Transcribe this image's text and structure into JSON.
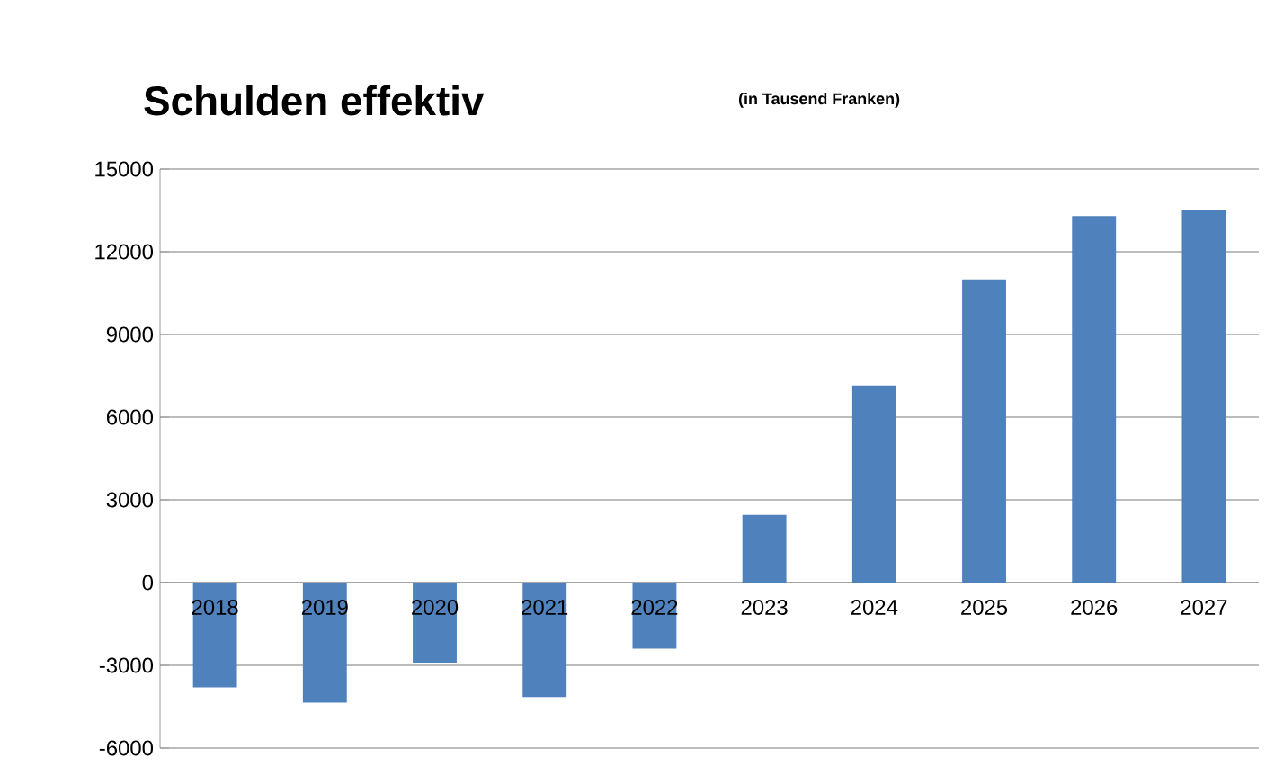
{
  "chart_data": {
    "type": "bar",
    "title": "Schulden effektiv",
    "subtitle": "(in Tausend Franken)",
    "categories": [
      "2018",
      "2019",
      "2020",
      "2021",
      "2022",
      "2023",
      "2024",
      "2025",
      "2026",
      "2027"
    ],
    "values": [
      -3800,
      -4350,
      -2900,
      -4150,
      -2400,
      2450,
      7150,
      11000,
      13300,
      13500
    ],
    "color": "#4f81bd",
    "ylim": [
      -6000,
      15000
    ],
    "yticks": [
      -6000,
      -3000,
      0,
      3000,
      6000,
      9000,
      12000,
      15000
    ],
    "grid": "y"
  }
}
